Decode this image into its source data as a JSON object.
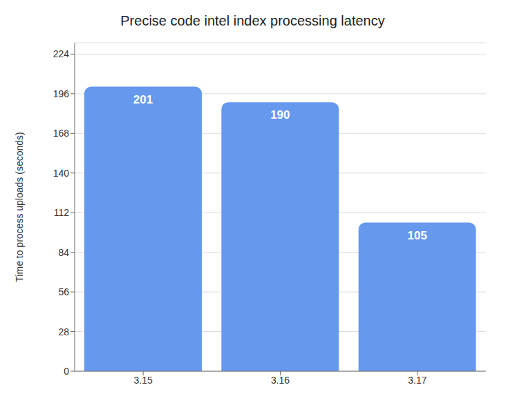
{
  "chart_data": {
    "type": "bar",
    "title": "Precise code intel index processing latency",
    "categories": [
      "3.15",
      "3.16",
      "3.17"
    ],
    "values": [
      201,
      190,
      105
    ],
    "color": "#6699ee",
    "ylabel": "Time to process uploads (seconds)",
    "ylim": [
      0,
      232
    ],
    "yticks": [
      0,
      28,
      56,
      84,
      112,
      140,
      168,
      196,
      224
    ],
    "grid": true,
    "data_labels": true
  }
}
